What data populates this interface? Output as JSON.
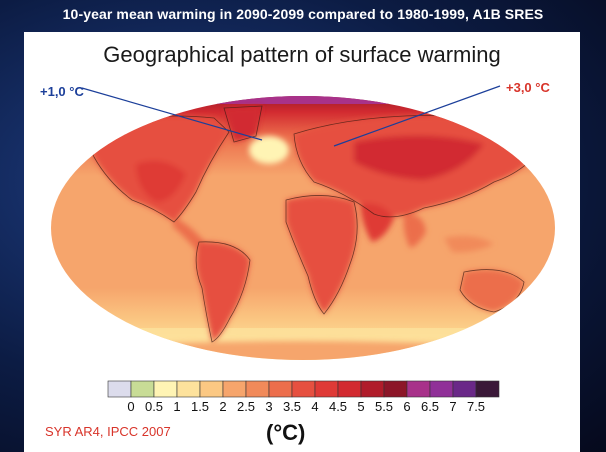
{
  "header": {
    "title": "10-year mean warming in 2090-2099 compared to 1980-1999, A1B SRES"
  },
  "panel": {
    "title": "Geographical pattern of surface warming",
    "annotations": [
      {
        "text": "+1,0 °C",
        "color": "#1c3f9a"
      },
      {
        "text": "+3,0 °C",
        "color": "#d8342a"
      }
    ],
    "source": "SYR AR4, IPCC 2007",
    "unit": "(°C)"
  },
  "legend": {
    "ticks": [
      "0",
      "0.5",
      "1",
      "1.5",
      "2",
      "2.5",
      "3",
      "3.5",
      "4",
      "4.5",
      "5",
      "5.5",
      "6",
      "6.5",
      "7",
      "7.5"
    ],
    "colors": [
      "#dcdcec",
      "#c8dc96",
      "#fff4b4",
      "#fde29c",
      "#fbc883",
      "#f6a56c",
      "#f18a5a",
      "#ec6e4c",
      "#e65040",
      "#df3a36",
      "#d22a30",
      "#b01c2a",
      "#8c1628",
      "#a8328a",
      "#903098",
      "#6a2888",
      "#3a1838"
    ]
  }
}
